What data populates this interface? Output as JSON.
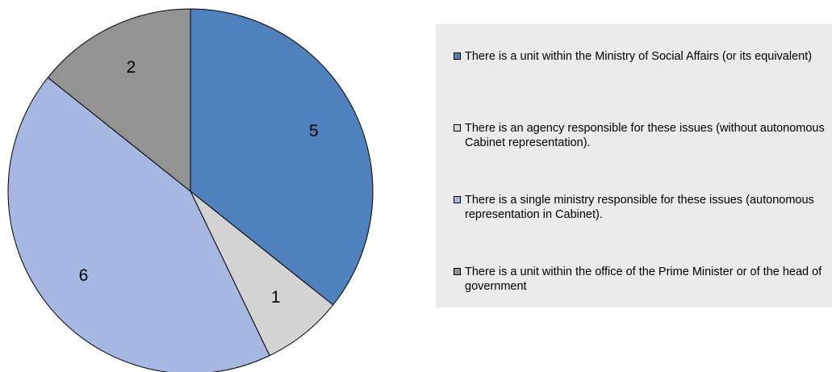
{
  "chart_data": {
    "type": "pie",
    "slices": [
      {
        "label": "There is a unit within the Ministry of Social Affairs (or its equivalent)",
        "value": 5,
        "color": "#4f81bd"
      },
      {
        "label": "There is an agency responsible for these issues (without autonomous Cabinet representation).",
        "value": 1,
        "color": "#d3d3d3"
      },
      {
        "label": "There is a single ministry responsible for these issues (autonomous representation in Cabinet).",
        "value": 6,
        "color": "#a6b8e2"
      },
      {
        "label": "There is a unit within the office of the Prime Minister or of the head of government",
        "value": 2,
        "color": "#939393"
      }
    ],
    "data_labels": [
      "5",
      "1",
      "6",
      "2"
    ],
    "legend_position": "right",
    "start_angle": "top",
    "direction": "clockwise"
  }
}
